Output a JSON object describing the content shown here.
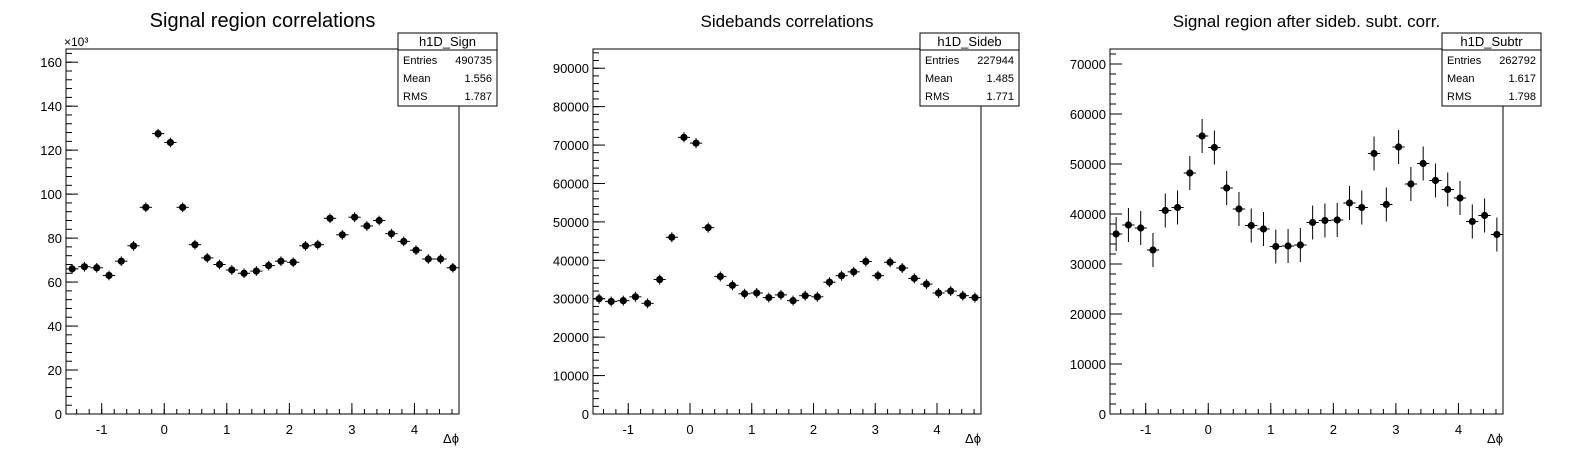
{
  "chart_data": [
    {
      "type": "scatter",
      "title": "Signal region correlations",
      "xlabel": "Δϕ",
      "ylabel": "",
      "xlim": [
        -1.5708,
        4.7124
      ],
      "ylim": [
        0,
        166000
      ],
      "y_exponent_label": "×10³",
      "xticks": [
        -1,
        0,
        1,
        2,
        3,
        4
      ],
      "yticks": [
        0,
        20000,
        40000,
        60000,
        80000,
        100000,
        120000,
        140000,
        160000
      ],
      "ytick_labels": [
        "0",
        "20",
        "40",
        "60",
        "80",
        "100",
        "120",
        "140",
        "160"
      ],
      "x": [
        -1.4726,
        -1.2763,
        -1.0799,
        -0.8836,
        -0.6872,
        -0.4909,
        -0.2945,
        -0.0982,
        0.0982,
        0.2945,
        0.4909,
        0.6872,
        0.8836,
        1.0799,
        1.2763,
        1.4726,
        1.669,
        1.8653,
        2.0617,
        2.258,
        2.4544,
        2.6507,
        2.8471,
        3.0434,
        3.2398,
        3.4361,
        3.6325,
        3.8288,
        4.0252,
        4.2215,
        4.4179,
        4.6142
      ],
      "y": [
        66000,
        67000,
        66500,
        63000,
        69500,
        76500,
        94000,
        127500,
        123500,
        94000,
        77000,
        71000,
        68000,
        65500,
        64000,
        65000,
        67500,
        69500,
        69000,
        76500,
        77000,
        89000,
        81500,
        89500,
        85500,
        88000,
        82000,
        78500,
        74500,
        70500,
        70500,
        66500
      ],
      "yerr": 2200,
      "stats": {
        "name": "h1D_Sign",
        "rows": [
          [
            "Entries",
            "490735"
          ],
          [
            "Mean",
            "1.556"
          ],
          [
            "RMS",
            "1.787"
          ]
        ]
      }
    },
    {
      "type": "scatter",
      "title": "Sidebands correlations",
      "xlabel": "Δϕ",
      "ylabel": "",
      "xlim": [
        -1.5708,
        4.7124
      ],
      "ylim": [
        0,
        95000
      ],
      "y_exponent_label": "",
      "xticks": [
        -1,
        0,
        1,
        2,
        3,
        4
      ],
      "yticks": [
        0,
        10000,
        20000,
        30000,
        40000,
        50000,
        60000,
        70000,
        80000,
        90000
      ],
      "ytick_labels": [
        "0",
        "10000",
        "20000",
        "30000",
        "40000",
        "50000",
        "60000",
        "70000",
        "80000",
        "90000"
      ],
      "x": [
        -1.4726,
        -1.2763,
        -1.0799,
        -0.8836,
        -0.6872,
        -0.4909,
        -0.2945,
        -0.0982,
        0.0982,
        0.2945,
        0.4909,
        0.6872,
        0.8836,
        1.0799,
        1.2763,
        1.4726,
        1.669,
        1.8653,
        2.0617,
        2.258,
        2.4544,
        2.6507,
        2.8471,
        3.0434,
        3.2398,
        3.4361,
        3.6325,
        3.8288,
        4.0252,
        4.2215,
        4.4179,
        4.6142
      ],
      "y": [
        30000,
        29300,
        29500,
        30500,
        28800,
        35000,
        46000,
        72000,
        70500,
        48500,
        35800,
        33500,
        31300,
        31500,
        30300,
        31000,
        29500,
        30800,
        30500,
        34300,
        36000,
        37000,
        39700,
        36000,
        39500,
        38000,
        35300,
        33800,
        31500,
        32000,
        30800,
        30300
      ],
      "yerr": 1300,
      "stats": {
        "name": "h1D_Sideb",
        "rows": [
          [
            "Entries",
            "227944"
          ],
          [
            "Mean",
            "1.485"
          ],
          [
            "RMS",
            "1.771"
          ]
        ]
      }
    },
    {
      "type": "scatter",
      "title": "Signal region after sideb. subt. corr.",
      "xlabel": "Δϕ",
      "ylabel": "",
      "xlim": [
        -1.5708,
        4.7124
      ],
      "ylim": [
        0,
        73000
      ],
      "y_exponent_label": "",
      "xticks": [
        -1,
        0,
        1,
        2,
        3,
        4
      ],
      "yticks": [
        0,
        10000,
        20000,
        30000,
        40000,
        50000,
        60000,
        70000
      ],
      "ytick_labels": [
        "0",
        "10000",
        "20000",
        "30000",
        "40000",
        "50000",
        "60000",
        "70000"
      ],
      "x": [
        -1.4726,
        -1.2763,
        -1.0799,
        -0.8836,
        -0.6872,
        -0.4909,
        -0.2945,
        -0.0982,
        0.0982,
        0.2945,
        0.4909,
        0.6872,
        0.8836,
        1.0799,
        1.2763,
        1.4726,
        1.669,
        1.8653,
        2.0617,
        2.258,
        2.4544,
        2.6507,
        2.8471,
        3.0434,
        3.2398,
        3.4361,
        3.6325,
        3.8288,
        4.0252,
        4.2215,
        4.4179,
        4.6142
      ],
      "y": [
        36000,
        37800,
        37200,
        32800,
        40700,
        41300,
        48200,
        55600,
        53300,
        45200,
        41000,
        37700,
        37000,
        33500,
        33600,
        33800,
        38300,
        38700,
        38800,
        42200,
        41300,
        52100,
        41900,
        53400,
        46000,
        50100,
        46700,
        44900,
        43200,
        38500,
        39700,
        35900
      ],
      "yerr": 3400,
      "stats": {
        "name": "h1D_Subtr",
        "rows": [
          [
            "Entries",
            "262792"
          ],
          [
            "Mean",
            "1.617"
          ],
          [
            "RMS",
            "1.798"
          ]
        ]
      }
    }
  ]
}
